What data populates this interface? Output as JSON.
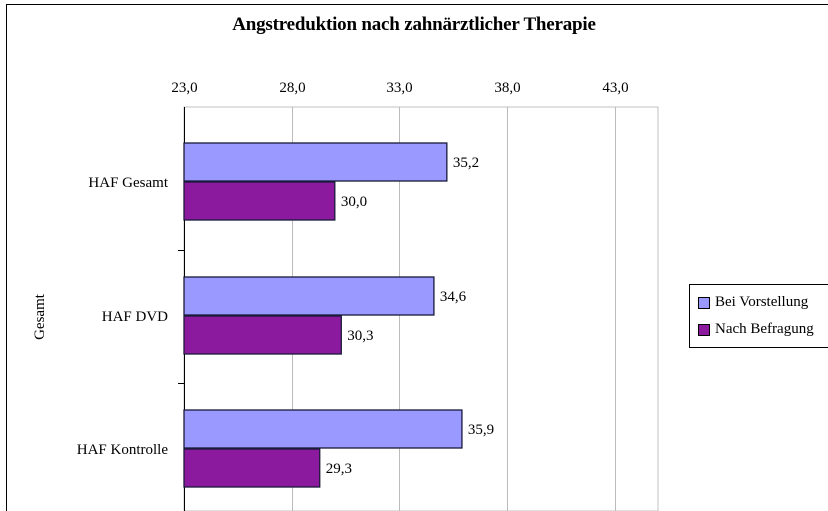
{
  "chart_data": {
    "type": "bar",
    "orientation": "horizontal",
    "title": "Angstreduktion nach zahnärztlicher Therapie",
    "group_label": "Gesamt",
    "categories": [
      "HAF Gesamt",
      "HAF DVD",
      "HAF Kontrolle"
    ],
    "xlim": [
      23.0,
      45.0
    ],
    "ticks": [
      "23,0",
      "28,0",
      "33,0",
      "38,0",
      "43,0"
    ],
    "grid": true,
    "legend_position": "right",
    "series": [
      {
        "name": "Bei Vorstellung",
        "color": "#9999ff",
        "values": [
          35.2,
          34.6,
          35.9
        ],
        "labels": [
          "35,2",
          "34,6",
          "35,9"
        ]
      },
      {
        "name": "Nach Befragung",
        "color": "#8b1a9e",
        "values": [
          30.0,
          30.3,
          29.3
        ],
        "labels": [
          "30,0",
          "30,3",
          "29,3"
        ]
      }
    ]
  }
}
